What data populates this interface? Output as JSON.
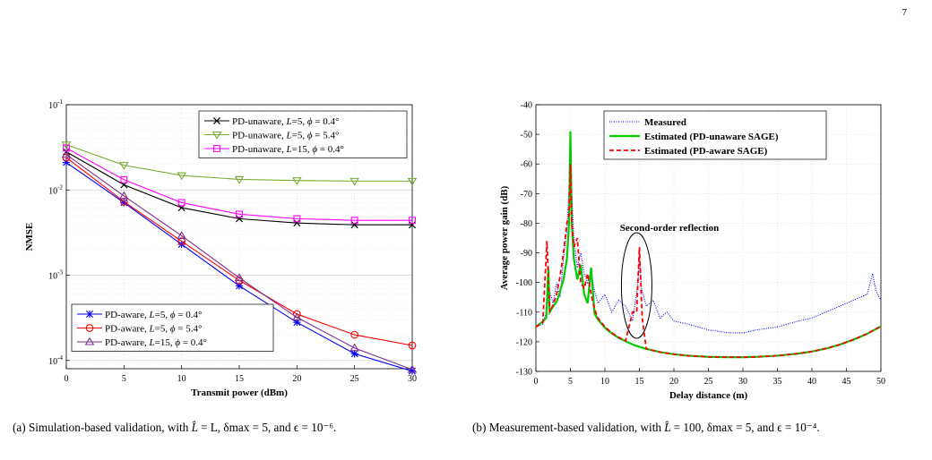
{
  "page": {
    "number": "7"
  },
  "figure_a": {
    "ylabel": "NMSE",
    "xlabel": "Transmit power (dBm)",
    "caption_label": "(a)",
    "caption_text": "Simulation-based validation, with",
    "caption_tail": "= L, δmax = 5, and ϵ = 10⁻⁶."
  },
  "figure_b": {
    "ylabel": "Average power gain (dB)",
    "xlabel": "Delay distance (m)",
    "annotation": "Second-order reflection",
    "caption_label": "(b)",
    "caption_text": "Measurement-based validation, with",
    "caption_tail": "= 100, δmax = 5, and ϵ = 10⁻⁴."
  },
  "chart_data": [
    {
      "type": "line",
      "ylabel": "NMSE",
      "xlabel": "Transmit power (dBm)",
      "xlim": [
        0,
        30
      ],
      "ylim": [
        8e-05,
        0.1
      ],
      "yscale": "log",
      "grid": true,
      "x": [
        0,
        5,
        10,
        15,
        20,
        25,
        30
      ],
      "xticks": [
        "0",
        "5",
        "10",
        "15",
        "20",
        "25",
        "30"
      ],
      "yticks": [
        {
          "value": 0.1,
          "base": "10",
          "exp": "-1"
        },
        {
          "value": 0.01,
          "base": "10",
          "exp": "-2"
        },
        {
          "value": 0.001,
          "base": "10",
          "exp": "-3"
        },
        {
          "value": 0.0001,
          "base": "10",
          "exp": "-4"
        }
      ],
      "legends": [
        "top-right",
        "bottom-left"
      ],
      "series": [
        {
          "name": "PD-unaware, L=5, ϕ = 0.4°",
          "color": "#000000",
          "marker": "x",
          "legend": 0,
          "values": [
            0.028,
            0.0115,
            0.0062,
            0.0046,
            0.0041,
            0.0039,
            0.0039
          ]
        },
        {
          "name": "PD-unaware, L=5, ϕ = 5.4°",
          "color": "#77AC30",
          "marker": "triangle-down",
          "legend": 0,
          "values": [
            0.034,
            0.0195,
            0.0148,
            0.0133,
            0.0129,
            0.0127,
            0.0127
          ]
        },
        {
          "name": "PD-unaware, L=15, ϕ = 0.4°",
          "color": "#FF00FF",
          "marker": "square",
          "legend": 0,
          "values": [
            0.031,
            0.0132,
            0.0071,
            0.0052,
            0.0046,
            0.0044,
            0.0044
          ]
        },
        {
          "name": "PD-aware, L=5, ϕ = 0.4°",
          "color": "#0000FF",
          "marker": "asterisk",
          "legend": 1,
          "values": [
            0.021,
            0.0071,
            0.0023,
            0.00075,
            0.00028,
            0.00012,
            7.5e-05
          ]
        },
        {
          "name": "PD-aware, L=5, ϕ = 5.4°",
          "color": "#FF0000",
          "marker": "circle",
          "legend": 1,
          "values": [
            0.024,
            0.0073,
            0.0025,
            0.00087,
            0.00035,
            0.0002,
            0.00015
          ]
        },
        {
          "name": "PD-aware, L=15, ϕ = 0.4°",
          "color": "#7E2F8E",
          "marker": "triangle-up",
          "legend": 1,
          "values": [
            0.026,
            0.0085,
            0.0029,
            0.00093,
            0.00032,
            0.00014,
            7.8e-05
          ]
        }
      ]
    },
    {
      "type": "line",
      "ylabel": "Average power gain (dB)",
      "xlabel": "Delay distance (m)",
      "xlim": [
        0,
        50
      ],
      "ylim": [
        -130,
        -40
      ],
      "grid": true,
      "legend": "top-left",
      "xticks": [
        "0",
        "5",
        "10",
        "15",
        "20",
        "25",
        "30",
        "35",
        "40",
        "45",
        "50"
      ],
      "yticks": [
        "-40",
        "-50",
        "-60",
        "-70",
        "-80",
        "-90",
        "-100",
        "-110",
        "-120",
        "-130"
      ],
      "annotation": "Second-order reflection",
      "series": [
        {
          "name": "Measured",
          "color": "#0000FF",
          "style": "dotted",
          "points": [
            [
              0,
              -115
            ],
            [
              1,
              -114
            ],
            [
              1.5,
              -110
            ],
            [
              2,
              -103
            ],
            [
              2.5,
              -107
            ],
            [
              3,
              -100
            ],
            [
              3.5,
              -105
            ],
            [
              4,
              -92
            ],
            [
              4.5,
              -82
            ],
            [
              4.8,
              -68
            ],
            [
              5,
              -50
            ],
            [
              5.2,
              -70
            ],
            [
              5.5,
              -85
            ],
            [
              6,
              -95
            ],
            [
              6.5,
              -90
            ],
            [
              7,
              -97
            ],
            [
              7.5,
              -100
            ],
            [
              8,
              -96
            ],
            [
              8.5,
              -103
            ],
            [
              9,
              -107
            ],
            [
              10,
              -104
            ],
            [
              11,
              -110
            ],
            [
              12,
              -106
            ],
            [
              13,
              -108
            ],
            [
              14,
              -113
            ],
            [
              14.8,
              -100
            ],
            [
              15,
              -90
            ],
            [
              15.3,
              -102
            ],
            [
              16,
              -108
            ],
            [
              17,
              -106
            ],
            [
              18,
              -112
            ],
            [
              19,
              -110
            ],
            [
              20,
              -113
            ],
            [
              22,
              -114
            ],
            [
              25,
              -116
            ],
            [
              28,
              -117
            ],
            [
              30,
              -117
            ],
            [
              32,
              -116
            ],
            [
              35,
              -115
            ],
            [
              38,
              -113
            ],
            [
              40,
              -112
            ],
            [
              42,
              -110
            ],
            [
              44,
              -108
            ],
            [
              46,
              -106
            ],
            [
              48,
              -104
            ],
            [
              48.8,
              -97
            ],
            [
              49.3,
              -103
            ],
            [
              50,
              -106
            ]
          ]
        },
        {
          "name": "Estimated (PD-unaware SAGE)",
          "color": "#00CC00",
          "style": "solid",
          "points": [
            [
              0,
              -114.9
            ],
            [
              1,
              -113.2
            ],
            [
              1.5,
              -111.9
            ],
            [
              1.8,
              -95
            ],
            [
              2,
              -110
            ],
            [
              2.5,
              -108
            ],
            [
              3,
              -106.5
            ],
            [
              3.5,
              -103
            ],
            [
              4,
              -99
            ],
            [
              4.5,
              -92
            ],
            [
              4.8,
              -80
            ],
            [
              5,
              -49
            ],
            [
              5.2,
              -80
            ],
            [
              5.5,
              -92
            ],
            [
              6,
              -99
            ],
            [
              6.5,
              -94
            ],
            [
              7,
              -104
            ],
            [
              7.5,
              -107
            ],
            [
              8,
              -95
            ],
            [
              8.5,
              -110.5
            ],
            [
              9,
              -112.5
            ],
            [
              10,
              -115.3
            ],
            [
              11,
              -117.2
            ],
            [
              12,
              -118.7
            ],
            [
              13,
              -119.8
            ],
            [
              14,
              -120.9
            ],
            [
              15,
              -121.7
            ],
            [
              16,
              -122.4
            ],
            [
              18,
              -123.5
            ],
            [
              20,
              -124.2
            ],
            [
              22,
              -124.7
            ],
            [
              25,
              -125.1
            ],
            [
              28,
              -125.2
            ],
            [
              30,
              -125.2
            ],
            [
              32,
              -125.1
            ],
            [
              35,
              -124.7
            ],
            [
              38,
              -124
            ],
            [
              40,
              -123.3
            ],
            [
              42,
              -122.3
            ],
            [
              44,
              -121
            ],
            [
              46,
              -119.3
            ],
            [
              48,
              -117.3
            ],
            [
              50,
              -114.8
            ]
          ]
        },
        {
          "name": "Estimated (PD-aware SAGE)",
          "color": "#FF0000",
          "style": "dashed",
          "points": [
            [
              0,
              -115
            ],
            [
              1,
              -113.5
            ],
            [
              1.6,
              -86
            ],
            [
              2,
              -110
            ],
            [
              2.5,
              -107.5
            ],
            [
              3,
              -104
            ],
            [
              3.5,
              -98
            ],
            [
              4,
              -90
            ],
            [
              4.5,
              -80
            ],
            [
              4.8,
              -77
            ],
            [
              5,
              -60
            ],
            [
              5.2,
              -80
            ],
            [
              5.5,
              -88
            ],
            [
              6,
              -85
            ],
            [
              6.5,
              -100
            ],
            [
              7,
              -102
            ],
            [
              7.5,
              -97
            ],
            [
              8,
              -104
            ],
            [
              8.5,
              -109
            ],
            [
              9,
              -112
            ],
            [
              10,
              -115
            ],
            [
              11,
              -117
            ],
            [
              12,
              -118.5
            ],
            [
              13,
              -119.7
            ],
            [
              14,
              -110
            ],
            [
              14.6,
              -110
            ],
            [
              15,
              -88
            ],
            [
              15.4,
              -112
            ],
            [
              16,
              -122.4
            ],
            [
              18,
              -123.5
            ],
            [
              20,
              -124.2
            ],
            [
              22,
              -124.7
            ],
            [
              25,
              -125.1
            ],
            [
              28,
              -125.2
            ],
            [
              30,
              -125.2
            ],
            [
              32,
              -125.1
            ],
            [
              35,
              -124.7
            ],
            [
              38,
              -124
            ],
            [
              40,
              -123.3
            ],
            [
              42,
              -122.3
            ],
            [
              44,
              -121
            ],
            [
              46,
              -119.3
            ],
            [
              48,
              -117.3
            ],
            [
              50,
              -114.8
            ]
          ]
        }
      ]
    }
  ]
}
